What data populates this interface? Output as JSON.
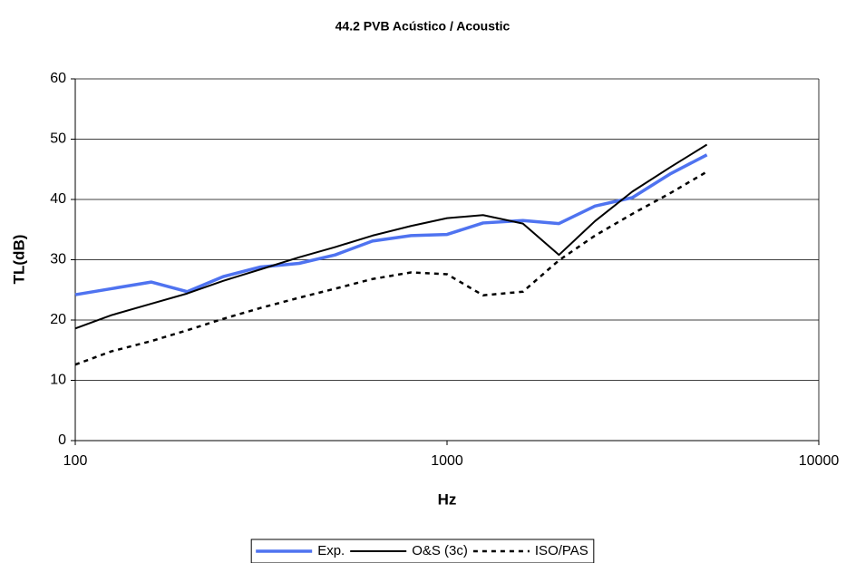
{
  "chart_data": {
    "type": "line",
    "title": "44.2 PVB Acústico / Acoustic",
    "x_label": "Hz",
    "y_label": "TL(dB)",
    "x": [
      100,
      125,
      160,
      200,
      250,
      315,
      400,
      500,
      630,
      800,
      1000,
      1250,
      1600,
      2000,
      2500,
      3150,
      4000,
      5000
    ],
    "series": [
      {
        "name": "Exp.",
        "color": "#4f73f0",
        "linewidth": 3.5,
        "dashed": false,
        "values": [
          24.2,
          25.2,
          26.3,
          24.7,
          27.2,
          28.8,
          29.4,
          30.8,
          33.1,
          34.0,
          34.2,
          36.1,
          36.5,
          36.0,
          38.9,
          40.3,
          44.3,
          47.4
        ]
      },
      {
        "name": "O&S (3c)",
        "color": "#000000",
        "linewidth": 2,
        "dashed": false,
        "values": [
          18.6,
          20.8,
          22.7,
          24.4,
          26.5,
          28.4,
          30.4,
          32.1,
          34.0,
          35.6,
          36.9,
          37.4,
          36.0,
          30.8,
          36.4,
          41.3,
          45.4,
          49.1
        ]
      },
      {
        "name": "ISO/PAS",
        "color": "#000000",
        "linewidth": 2.5,
        "dashed": true,
        "values": [
          12.6,
          14.8,
          16.5,
          18.3,
          20.2,
          22.0,
          23.7,
          25.2,
          26.8,
          27.9,
          27.6,
          24.1,
          24.7,
          29.9,
          34.0,
          37.6,
          41.1,
          44.6
        ]
      }
    ],
    "xlim": [
      100,
      10000
    ],
    "xticks": [
      100,
      1000,
      10000
    ],
    "x_log": true,
    "ylim": [
      0,
      60
    ],
    "yticks": [
      0,
      10,
      20,
      30,
      40,
      50,
      60
    ],
    "grid": true,
    "legend": "bottom"
  }
}
